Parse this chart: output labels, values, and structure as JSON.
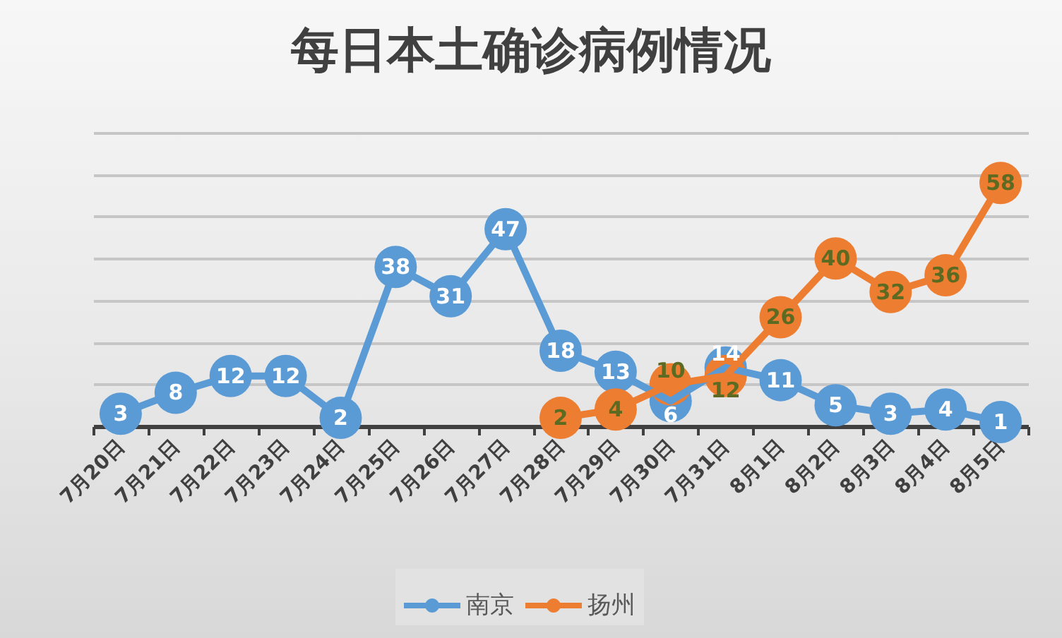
{
  "chart_data": {
    "type": "line",
    "title": "每日本土确诊病例情况",
    "categories": [
      "7月20日",
      "7月21日",
      "7月22日",
      "7月23日",
      "7月24日",
      "7月25日",
      "7月26日",
      "7月27日",
      "7月28日",
      "7月29日",
      "7月30日",
      "7月31日",
      "8月1日",
      "8月2日",
      "8月3日",
      "8月4日",
      "8月5日"
    ],
    "series": [
      {
        "name": "南京",
        "color": "#5b9bd5",
        "values": [
          3,
          8,
          12,
          12,
          2,
          38,
          31,
          47,
          18,
          13,
          6,
          14,
          11,
          5,
          3,
          4,
          1
        ]
      },
      {
        "name": "扬州",
        "color": "#ed7d31",
        "values": [
          null,
          null,
          null,
          null,
          null,
          null,
          null,
          null,
          2,
          4,
          10,
          12,
          26,
          40,
          32,
          36,
          58
        ]
      }
    ],
    "ylim": [
      0,
      70
    ],
    "yticks": [
      {
        "value": 0,
        "label": null
      },
      {
        "value": 10,
        "label": null
      },
      {
        "value": 20,
        "label": null
      },
      {
        "value": 30,
        "label": null
      },
      {
        "value": 40,
        "label": null
      },
      {
        "value": 50,
        "label": null
      },
      {
        "value": 60,
        "label": null
      },
      {
        "value": 70,
        "label": null
      }
    ],
    "grid": "y",
    "legend": "bottom",
    "tick_labels": "x",
    "marker": "circle",
    "data_labels": true
  }
}
